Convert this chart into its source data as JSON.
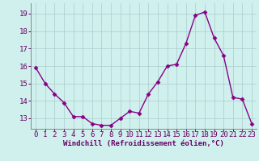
{
  "x": [
    0,
    1,
    2,
    3,
    4,
    5,
    6,
    7,
    8,
    9,
    10,
    11,
    12,
    13,
    14,
    15,
    16,
    17,
    18,
    19,
    20,
    21,
    22,
    23
  ],
  "y": [
    15.9,
    15.0,
    14.4,
    13.9,
    13.1,
    13.1,
    12.7,
    12.6,
    12.6,
    13.0,
    13.4,
    13.3,
    14.4,
    15.1,
    16.0,
    16.1,
    17.3,
    18.9,
    19.1,
    17.6,
    16.6,
    14.2,
    14.1,
    12.7
  ],
  "color": "#880088",
  "bg_color": "#cff0ec",
  "grid_color": "#aacccc",
  "xlabel": "Windchill (Refroidissement éolien,°C)",
  "ylim": [
    12.4,
    19.6
  ],
  "yticks": [
    13,
    14,
    15,
    16,
    17,
    18,
    19
  ],
  "xticks": [
    0,
    1,
    2,
    3,
    4,
    5,
    6,
    7,
    8,
    9,
    10,
    11,
    12,
    13,
    14,
    15,
    16,
    17,
    18,
    19,
    20,
    21,
    22,
    23
  ],
  "marker": "D",
  "markersize": 2.5,
  "linewidth": 1.0,
  "xlabel_fontsize": 6.5,
  "tick_fontsize": 6.5,
  "label_color": "#660066"
}
